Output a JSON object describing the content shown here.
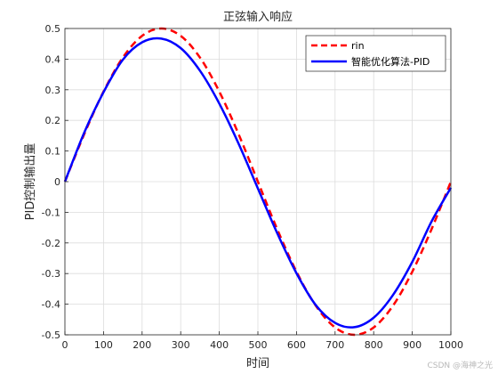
{
  "chart_data": {
    "type": "line",
    "title": "正弦输入响应",
    "xlabel": "时间",
    "ylabel": "PID控制输出量",
    "xlim": [
      0,
      1000
    ],
    "ylim": [
      -0.5,
      0.5
    ],
    "xticks": [
      0,
      100,
      200,
      300,
      400,
      500,
      600,
      700,
      800,
      900,
      1000
    ],
    "yticks": [
      0.5,
      0.4,
      0.3,
      0.2,
      0.1,
      0,
      -0.1,
      -0.2,
      -0.3,
      -0.4,
      -0.5
    ],
    "grid": true,
    "legend_position": "top-right",
    "series": [
      {
        "name": "rin",
        "color": "#ff0000",
        "style": "dashed",
        "x": [
          0,
          50,
          100,
          150,
          200,
          250,
          300,
          350,
          400,
          450,
          500,
          550,
          600,
          650,
          700,
          750,
          800,
          850,
          900,
          950,
          1000
        ],
        "values": [
          0,
          0.155,
          0.294,
          0.405,
          0.476,
          0.5,
          0.476,
          0.405,
          0.294,
          0.155,
          0,
          -0.155,
          -0.294,
          -0.405,
          -0.476,
          -0.5,
          -0.476,
          -0.405,
          -0.294,
          -0.155,
          0
        ]
      },
      {
        "name": "智能优化算法-PID",
        "color": "#0000ff",
        "style": "solid",
        "x": [
          0,
          50,
          100,
          150,
          200,
          250,
          300,
          350,
          400,
          450,
          500,
          550,
          600,
          650,
          700,
          750,
          800,
          850,
          900,
          950,
          1000
        ],
        "values": [
          0,
          0.16,
          0.292,
          0.398,
          0.455,
          0.467,
          0.436,
          0.362,
          0.255,
          0.124,
          -0.022,
          -0.168,
          -0.299,
          -0.403,
          -0.461,
          -0.475,
          -0.444,
          -0.37,
          -0.262,
          -0.13,
          -0.02
        ]
      }
    ]
  },
  "watermark": "CSDN @海神之光"
}
